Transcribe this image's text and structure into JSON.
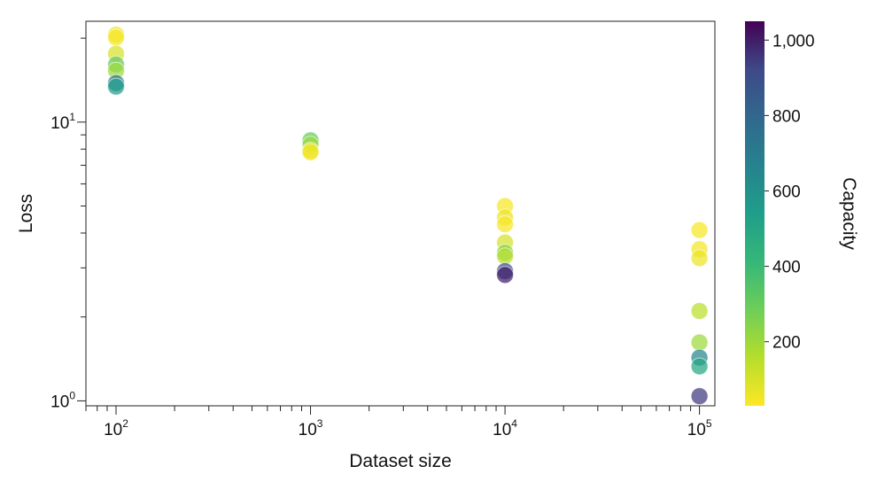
{
  "chart_data": {
    "type": "scatter",
    "xlabel": "Dataset size",
    "ylabel": "Loss",
    "x_scale": "log",
    "y_scale": "log",
    "xlim": [
      70,
      120000
    ],
    "ylim": [
      0.96,
      23
    ],
    "x_ticks": [
      {
        "value": 100,
        "base": "10",
        "exp": "2"
      },
      {
        "value": 1000,
        "base": "10",
        "exp": "3"
      },
      {
        "value": 10000,
        "base": "10",
        "exp": "4"
      },
      {
        "value": 100000,
        "base": "10",
        "exp": "5"
      }
    ],
    "y_ticks": [
      {
        "value": 1,
        "base": "10",
        "exp": "0"
      },
      {
        "value": 10,
        "base": "10",
        "exp": "1"
      }
    ],
    "grid": false,
    "colorbar": {
      "label": "Capacity",
      "colormap": "viridis",
      "range": [
        30,
        1050
      ],
      "ticks": [
        {
          "value": 200,
          "label": "200"
        },
        {
          "value": 400,
          "label": "400"
        },
        {
          "value": 600,
          "label": "600"
        },
        {
          "value": 800,
          "label": "800"
        },
        {
          "value": 1000,
          "label": "1,000"
        }
      ]
    },
    "points": [
      {
        "x": 100,
        "y": 20.6,
        "capacity": 60
      },
      {
        "x": 100,
        "y": 20.1,
        "capacity": 40
      },
      {
        "x": 100,
        "y": 17.6,
        "capacity": 100
      },
      {
        "x": 100,
        "y": 16.1,
        "capacity": 300
      },
      {
        "x": 100,
        "y": 15.3,
        "capacity": 200
      },
      {
        "x": 100,
        "y": 13.8,
        "capacity": 700
      },
      {
        "x": 100,
        "y": 13.4,
        "capacity": 550
      },
      {
        "x": 1000,
        "y": 8.6,
        "capacity": 300
      },
      {
        "x": 1000,
        "y": 8.3,
        "capacity": 200
      },
      {
        "x": 1000,
        "y": 7.9,
        "capacity": 100
      },
      {
        "x": 1000,
        "y": 7.8,
        "capacity": 40
      },
      {
        "x": 10000,
        "y": 5.0,
        "capacity": 40
      },
      {
        "x": 10000,
        "y": 4.55,
        "capacity": 60
      },
      {
        "x": 10000,
        "y": 4.3,
        "capacity": 40
      },
      {
        "x": 10000,
        "y": 3.7,
        "capacity": 100
      },
      {
        "x": 10000,
        "y": 3.4,
        "capacity": 250
      },
      {
        "x": 10000,
        "y": 3.3,
        "capacity": 150
      },
      {
        "x": 10000,
        "y": 2.92,
        "capacity": 900
      },
      {
        "x": 10000,
        "y": 2.83,
        "capacity": 1000
      },
      {
        "x": 100000,
        "y": 4.1,
        "capacity": 40
      },
      {
        "x": 100000,
        "y": 3.5,
        "capacity": 50
      },
      {
        "x": 100000,
        "y": 3.25,
        "capacity": 60
      },
      {
        "x": 100000,
        "y": 2.1,
        "capacity": 150
      },
      {
        "x": 100000,
        "y": 1.62,
        "capacity": 200
      },
      {
        "x": 100000,
        "y": 1.43,
        "capacity": 650
      },
      {
        "x": 100000,
        "y": 1.33,
        "capacity": 500
      },
      {
        "x": 100000,
        "y": 1.04,
        "capacity": 950
      }
    ]
  }
}
